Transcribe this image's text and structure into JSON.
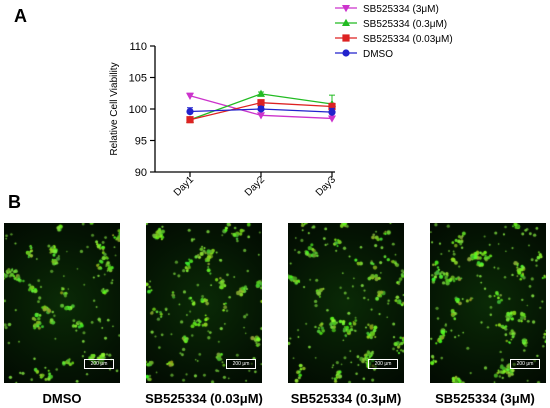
{
  "panel_a_label": "A",
  "panel_b_label": "B",
  "chart_data": {
    "type": "line",
    "title": "",
    "xlabel": "",
    "ylabel": "Relative Cell Viability",
    "categories": [
      "Day1",
      "Day2",
      "Day3"
    ],
    "ylim": [
      90,
      110
    ],
    "yticks": [
      90,
      95,
      100,
      105,
      110
    ],
    "legend_position": "top-right",
    "series": [
      {
        "name": "SB525334 (3μM)",
        "values": [
          102.1,
          99.0,
          98.5
        ],
        "color": "#cc33cc",
        "marker": "triangle-down"
      },
      {
        "name": "SB525334 (0.3μM)",
        "values": [
          98.3,
          102.4,
          100.8
        ],
        "color": "#22bb22",
        "marker": "triangle-up"
      },
      {
        "name": "SB525334 (0.03μM)",
        "values": [
          98.3,
          101.0,
          100.4
        ],
        "color": "#dd2222",
        "marker": "square"
      },
      {
        "name": "DMSO",
        "values": [
          99.6,
          100.0,
          99.5
        ],
        "color": "#2222cc",
        "marker": "circle"
      }
    ]
  },
  "micrographs": [
    {
      "caption": "DMSO",
      "scale_label": "200 μm"
    },
    {
      "caption": "SB525334 (0.03μM)",
      "scale_label": "200 μm"
    },
    {
      "caption": "SB525334 (0.3μM)",
      "scale_label": "200 μm"
    },
    {
      "caption": "SB525334 (3μM)",
      "scale_label": "200 μm"
    }
  ]
}
